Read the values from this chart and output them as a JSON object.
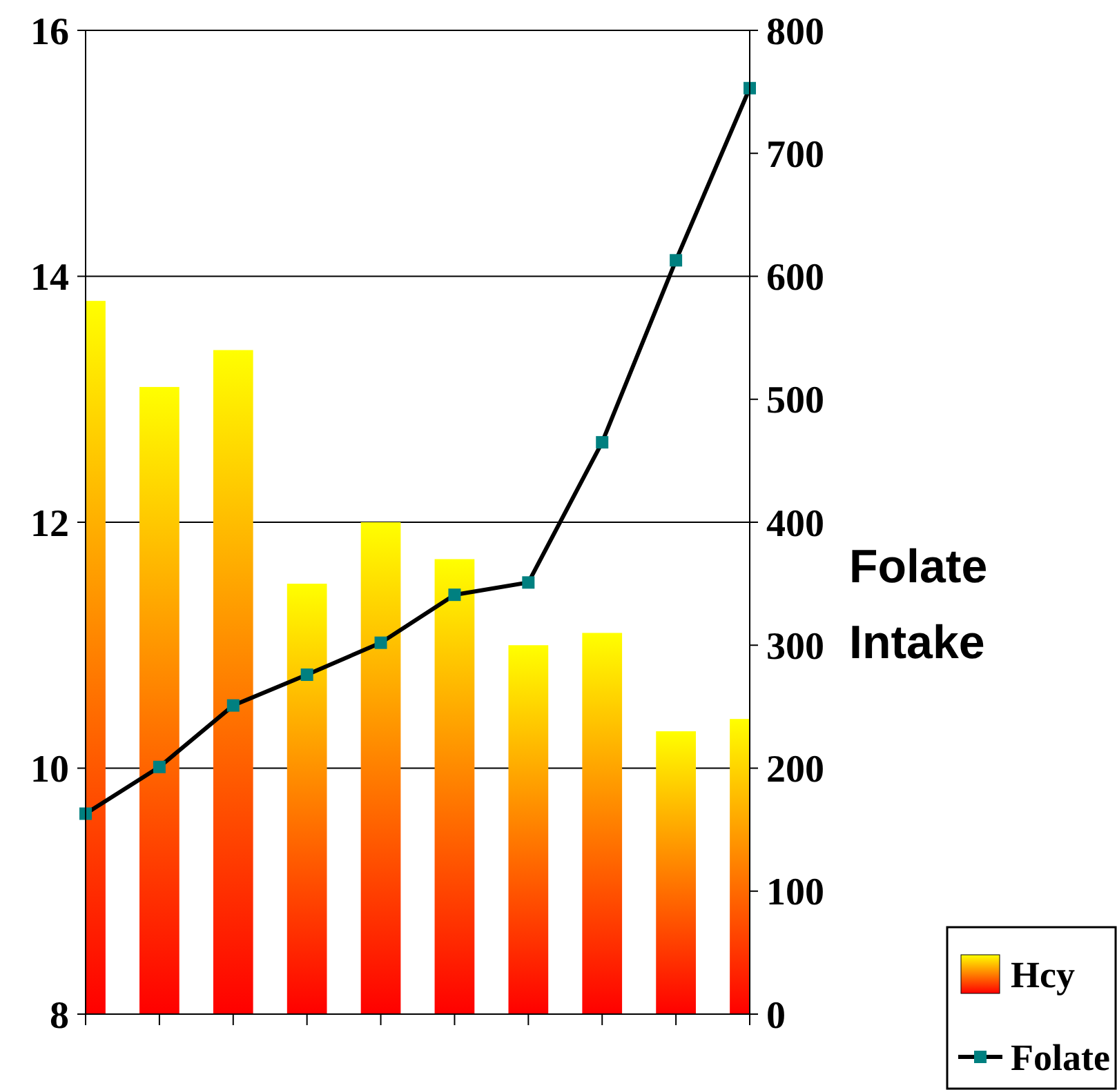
{
  "chart_data": {
    "type": "bar",
    "categories": [
      null,
      null,
      null,
      null,
      null,
      null,
      null,
      null,
      null,
      null
    ],
    "series": [
      {
        "name": "Hcy",
        "color": "#ffff00",
        "values": [
          13.8,
          13.1,
          13.4,
          11.5,
          12.0,
          11.7,
          11.0,
          11.1,
          10.3,
          10.4
        ]
      },
      {
        "name": "Folate",
        "type": "line",
        "axis": "y2",
        "color": "#000000",
        "marker": "square",
        "values": [
          163,
          201,
          251,
          276,
          302,
          341,
          351,
          465,
          613,
          753
        ]
      }
    ],
    "ylim": [
      8,
      16
    ],
    "yticks": [
      8,
      10,
      12,
      14,
      16
    ],
    "y2lim": [
      0,
      800
    ],
    "y2ticks": [
      0,
      100,
      200,
      300,
      400,
      500,
      600,
      700,
      800
    ],
    "y2label": "Folate Intake",
    "grid": "y",
    "legend": "bottom right"
  }
}
